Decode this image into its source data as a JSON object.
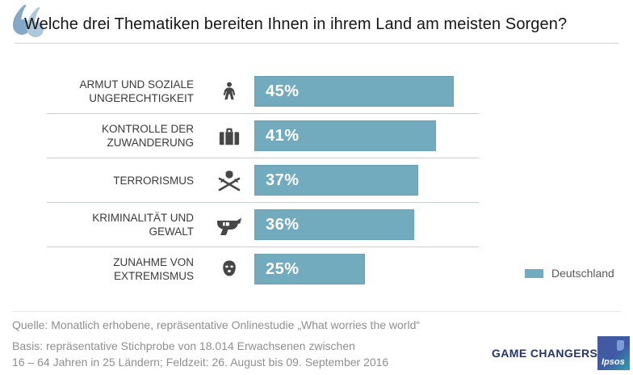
{
  "header": {
    "title": "Welche drei Thematiken bereiten Ihnen in ihrem Land am meisten Sorgen?"
  },
  "chart_data": {
    "type": "bar",
    "orientation": "horizontal",
    "unit": "%",
    "xlim": [
      0,
      50
    ],
    "grid": false,
    "legend_position": "right-bottom",
    "categories": [
      "Armut und soziale Ungerechtigkeit",
      "Kontrolle der Zuwanderung",
      "Terrorismus",
      "Kriminalität und Gewalt",
      "Zunahme von Extremismus"
    ],
    "values": [
      45,
      41,
      37,
      36,
      25
    ],
    "series": [
      {
        "name": "Deutschland",
        "values": [
          45,
          41,
          37,
          36,
          25
        ]
      }
    ],
    "items": [
      {
        "label_lines": [
          "ARMUT UND SOZIALE",
          "UNGERECHTIGKEIT"
        ],
        "icon": "person-icon",
        "value": 45,
        "value_label": "45%"
      },
      {
        "label_lines": [
          "KONTROLLE DER",
          "ZUWANDERUNG"
        ],
        "icon": "suitcase-icon",
        "value": 41,
        "value_label": "41%"
      },
      {
        "label_lines": [
          "TERRORISMUS"
        ],
        "icon": "terrorist-icon",
        "value": 37,
        "value_label": "37%"
      },
      {
        "label_lines": [
          "KRIMINALITÄT UND",
          "GEWALT"
        ],
        "icon": "revolver-icon",
        "value": 36,
        "value_label": "36%"
      },
      {
        "label_lines": [
          "ZUNAHME VON",
          "EXTREMISMUS"
        ],
        "icon": "balaclava-icon",
        "value": 25,
        "value_label": "25%"
      }
    ],
    "legend": {
      "label": "Deutschland"
    }
  },
  "colors": {
    "bar": "#72AABE",
    "bar_value_text": "#FFFFFF",
    "category_text": "#3A3A3A",
    "icon": "#474747",
    "quote_mark_dark": "#84A9C6",
    "quote_mark_light": "#AEC8DB",
    "brand_navy": "#24356B",
    "footer_text": "#8F8F8F"
  },
  "footer": {
    "source_line": "Quelle: Monatlich erhobene, repräsentative Onlinestudie „What worries the world“",
    "basis_line_1": "Basis: repräsentative Stichprobe von 18.014 Erwachsenen zwischen",
    "basis_line_2": "16 – 64 Jahren in 25 Ländern; Feldzeit: 26. August bis 09. September 2016",
    "brand_text": "GAME CHANGERS",
    "logo_text": "Ipsos"
  }
}
